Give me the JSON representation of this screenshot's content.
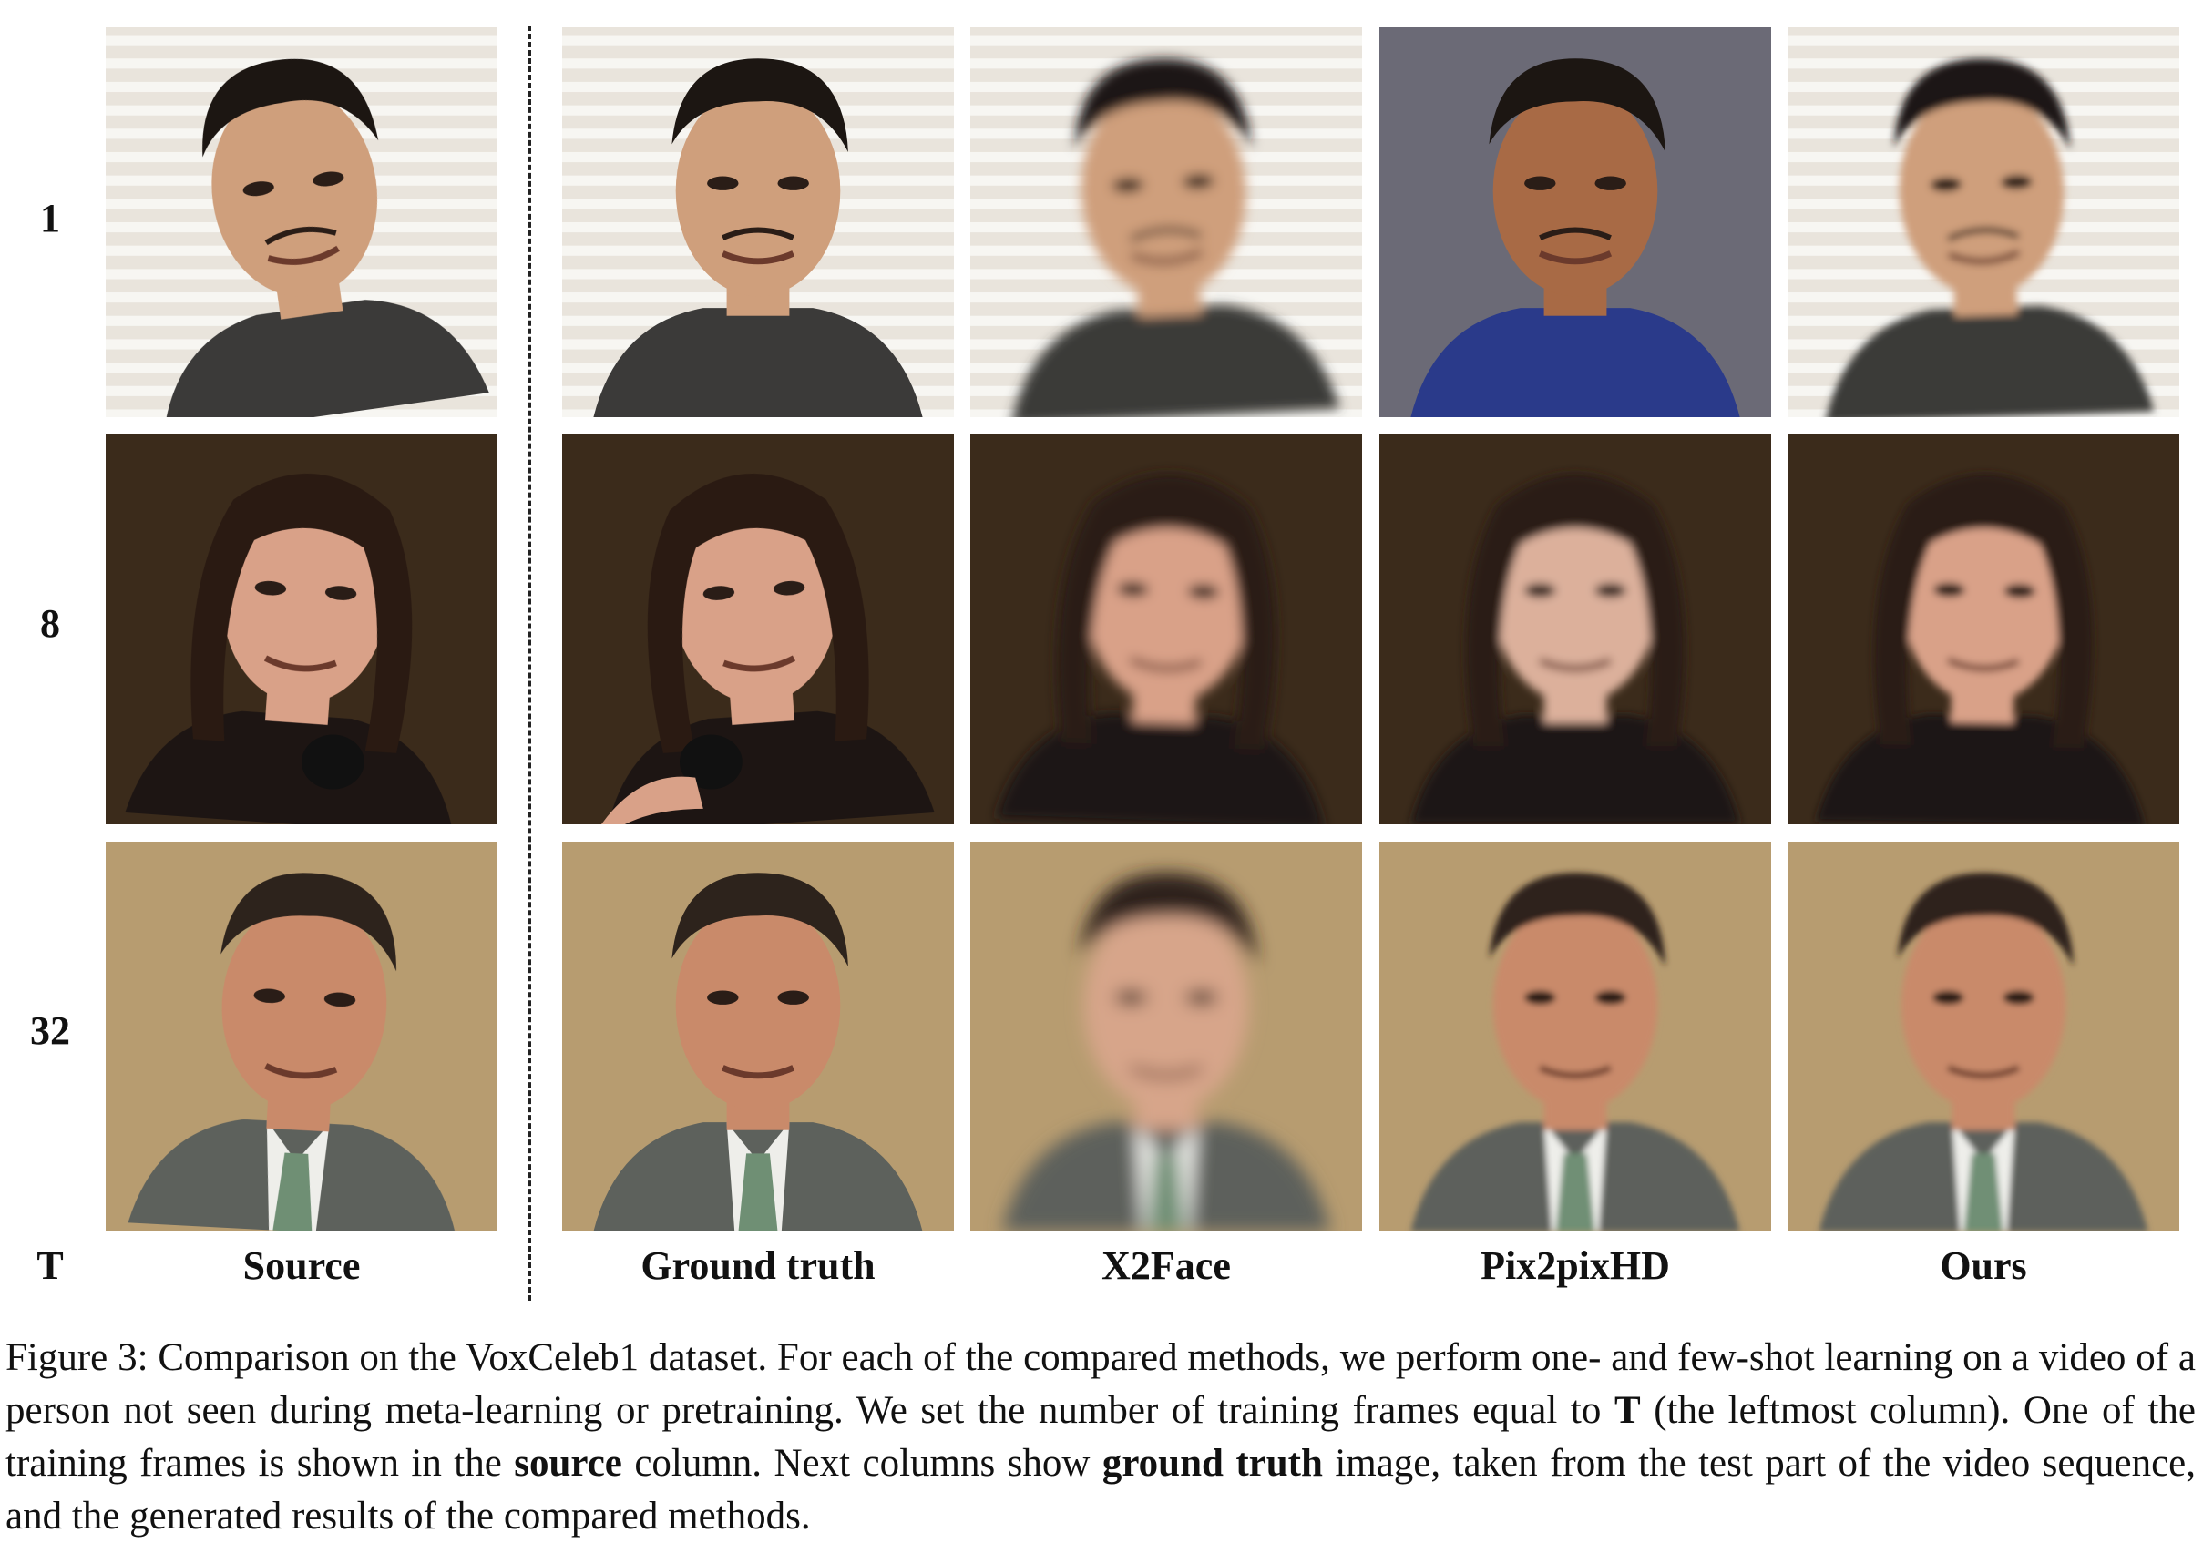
{
  "figure": {
    "row_labels": [
      "1",
      "8",
      "32"
    ],
    "axis_label": "T",
    "column_labels": [
      "Source",
      "Ground truth",
      "X2Face",
      "Pix2pixHD",
      "Ours"
    ],
    "rows": [
      {
        "background": "#e9e4dc",
        "stripe": "#f7f6f2",
        "skin": "#cf9f7c",
        "hair": "#1c1612",
        "cloth": "#3b3a39",
        "stripes": true,
        "cells": [
          {
            "tilt": -8
          },
          {
            "tilt": 0
          },
          {
            "tilt": -3,
            "blur": 1.5
          },
          {
            "tilt": 0,
            "background": "#6b6a76",
            "skin": "#a86a45",
            "cloth": "#2a3a8a"
          },
          {
            "tilt": -2,
            "blur": 1
          }
        ]
      },
      {
        "background": "#3b2b1b",
        "stripe": "#3b2b1b",
        "skin": "#d9a188",
        "hair": "#2a1a12",
        "cloth": "#1d1513",
        "stripes": false,
        "mic": true,
        "cells": [
          {
            "tilt": 4
          },
          {
            "tilt": -4
          },
          {
            "tilt": 2,
            "blur": 1.5
          },
          {
            "tilt": 0,
            "skin": "#dcb09b",
            "blur": 1.2
          },
          {
            "tilt": 1,
            "blur": 1
          }
        ]
      },
      {
        "background": "#b79c70",
        "stripe": "#b79c70",
        "skin": "#c98a6a",
        "hair": "#2d231c",
        "cloth": "#5d615c",
        "stripes": false,
        "tie": true,
        "cells": [
          {
            "tilt": 3
          },
          {
            "tilt": 0
          },
          {
            "tilt": 0,
            "blur": 2.2,
            "skin": "#d7a58a"
          },
          {
            "tilt": 0,
            "blur": 0.8
          },
          {
            "tilt": 0,
            "blur": 0.8
          }
        ]
      }
    ]
  },
  "caption": {
    "part1": "Figure 3: Comparison on the VoxCeleb1 dataset. For each of the compared methods, we perform one- and few-shot learning on a video of a person not seen during meta-learning or pretraining.  We set the number of training frames equal to ",
    "bold1": "T",
    "part2": " (the leftmost column). One of the training frames is shown in the ",
    "bold2": "source",
    "part3": " column. Next columns show ",
    "bold3": "ground truth",
    "part4": " image, taken from the test part of the video sequence, and the generated results of the compared methods."
  }
}
